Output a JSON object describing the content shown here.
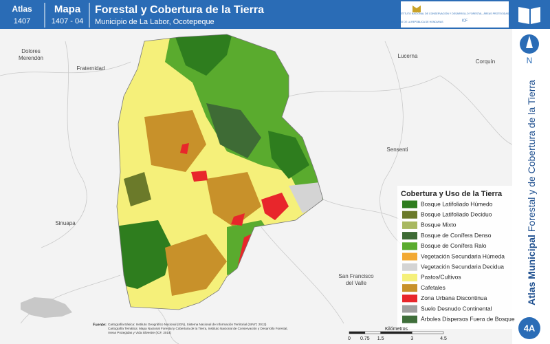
{
  "header": {
    "atlas_label": "Atlas",
    "atlas_number": "1407",
    "map_label": "Mapa",
    "map_number": "1407 - 04",
    "title": "Forestal y Cobertura de la Tierra",
    "subtitle": "Municipio de La Labor, Ocotepeque"
  },
  "logos": {
    "government": "GOBIERNO DE LA REPÚBLICA DE HONDURAS",
    "institute": "INSTITUTO NACIONAL DE CONSERVACIÓN Y DESARROLLO FORESTAL, ÁREAS PROTEGIDAS Y VIDA SILVESTRE",
    "acronym": "ICF"
  },
  "sidebar": {
    "north": "N",
    "vertical_bold": "Atlas Municipal",
    "vertical_rest": "Forestal y de Cobertura de la Tierra",
    "badge": "4A"
  },
  "places": [
    {
      "lines": [
        "Dolores",
        "Merendón"
      ]
    },
    {
      "lines": [
        "Fraternidad"
      ]
    },
    {
      "lines": [
        "Lucerna"
      ]
    },
    {
      "lines": [
        "Corquín"
      ]
    },
    {
      "lines": [
        "Sensenti"
      ]
    },
    {
      "lines": [
        "Sinuapa"
      ]
    },
    {
      "lines": [
        "San Francisco",
        "del Valle"
      ]
    }
  ],
  "legend": {
    "title": "Cobertura y Uso de la Tierra",
    "items": [
      {
        "label": "Bosque Latifoliado Húmedo",
        "color": "#2e7d1e"
      },
      {
        "label": "Bosque Latifoliado Deciduo",
        "color": "#6b7a2a"
      },
      {
        "label": "Bosque Mixto",
        "color": "#a8b860"
      },
      {
        "label": "Bosque de Conífera Denso",
        "color": "#3e6b35"
      },
      {
        "label": "Bosque de Conífera Ralo",
        "color": "#5aab2e"
      },
      {
        "label": "Vegetación Secundaria Húmeda",
        "color": "#f2a933"
      },
      {
        "label": "Vegetación Secundaria Decidua",
        "color": "#d4d4d4"
      },
      {
        "label": "Pastos/Cultivos",
        "color": "#f5f07a"
      },
      {
        "label": "Cafetales",
        "color": "#c8912a"
      },
      {
        "label": "Zona Urbana Discontinua",
        "color": "#e8262b"
      },
      {
        "label": "Suelo Desnudo Continental",
        "color": "#a0a0a0"
      },
      {
        "label": "Árboles Dispersos Fuera de Bosque",
        "color": "#3f6e3a"
      }
    ]
  },
  "source": {
    "label": "Fuente:",
    "lines": [
      "Cartografía Básica: Instituto Geográfico Nacional (IGN), Sistema Nacional de Información Territorial (SINIT, 2013)",
      "Cartografía Temática: Mapa Nacional Forestal y Cobertura de la Tierra, Instituto Nacional de Conservación y Desarrollo Forestal,",
      "Áreas Protegidas y Vida Silvestre (ICF, 2014)"
    ]
  },
  "scale": {
    "ticks": [
      0,
      0.75,
      1.5,
      3,
      4.5
    ],
    "unit": "Kilómetros"
  }
}
